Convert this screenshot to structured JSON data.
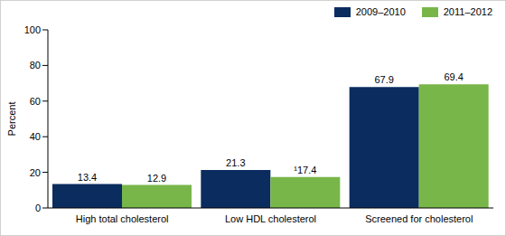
{
  "chart_data": {
    "type": "bar",
    "categories": [
      "High total cholesterol",
      "Low HDL cholesterol",
      "Screened for cholesterol"
    ],
    "series": [
      {
        "name": "2009–2010",
        "color": "#0b2c5e",
        "values": [
          13.4,
          21.3,
          67.9
        ]
      },
      {
        "name": "2011–2012",
        "color": "#78b64a",
        "values": [
          12.9,
          17.4,
          69.4
        ],
        "value_labels": [
          "12.9",
          "¹17.4",
          "69.4"
        ]
      }
    ],
    "y_label": "Percent",
    "ylim": [
      0,
      100
    ],
    "yticks": [
      0,
      20,
      40,
      60,
      80,
      100
    ],
    "grid": false,
    "legend": "top-right",
    "data_labels": true
  }
}
